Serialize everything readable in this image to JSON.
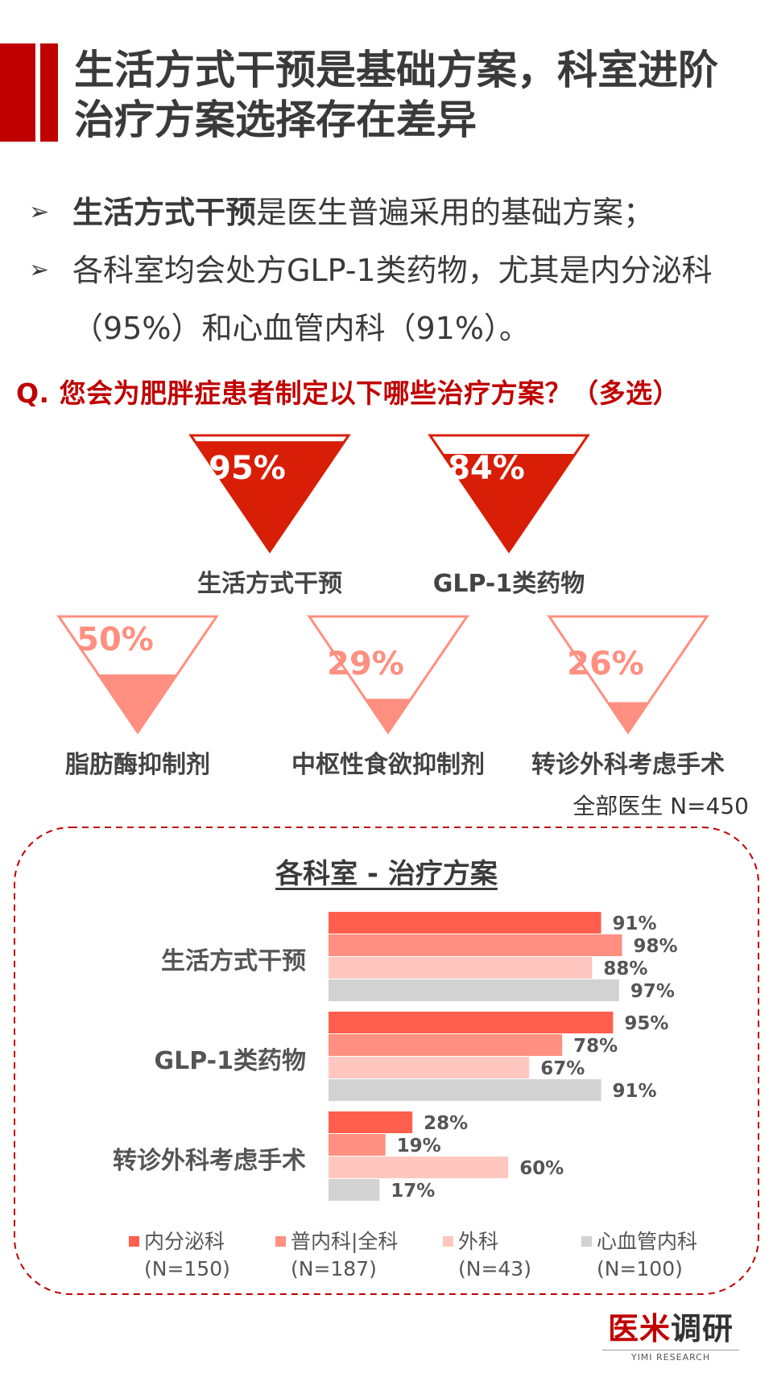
{
  "title": "生活方式干预是基础方案，科室进阶治疗方案选择存在差异",
  "bullets": [
    {
      "bold": "生活方式干预",
      "text": "是医生普遍采用的基础方案；"
    },
    {
      "bold": "",
      "text": "各科室均会处方GLP-1类药物，尤其是内分泌科（95%）和心血管内科（91%）。"
    }
  ],
  "question": "Q. 您会为肥胖症患者制定以下哪些治疗方案？（多选）",
  "sample_note": "全部医生 N=450",
  "dept_title": "各科室 - 治疗方案",
  "legend": [
    {
      "name": "内分泌科",
      "n": "(N=150)",
      "color": "#ff5f4c"
    },
    {
      "name": "普内科|全科",
      "n": "(N=187)",
      "color": "#ff8f80"
    },
    {
      "name": "外科",
      "n": "(N=43)",
      "color": "#ffc7c0"
    },
    {
      "name": "心血管内科",
      "n": "(N=100)",
      "color": "#d2d2d2"
    }
  ],
  "logo": {
    "main_red": "医米",
    "main_dark": "调研",
    "sub": "YIMI RESEARCH"
  },
  "chart_data": [
    {
      "type": "bar",
      "subtype": "funnel-triangle-fill",
      "categories": [
        "生活方式干预",
        "GLP-1类药物",
        "脂肪酶抑制剂",
        "中枢性食欲抑制剂",
        "转诊外科考虑手术"
      ],
      "values": [
        95,
        84,
        50,
        29,
        26
      ],
      "value_labels": [
        "95%",
        "84%",
        "50%",
        "29%",
        "26%"
      ],
      "colors": [
        "#d81e06",
        "#d81e06",
        "#ff8f80",
        "#ff8f80",
        "#ff8f80"
      ],
      "ylim": [
        0,
        100
      ]
    },
    {
      "type": "bar",
      "orientation": "horizontal",
      "categories": [
        "生活方式干预",
        "GLP-1类药物",
        "转诊外科考虑手术"
      ],
      "series": [
        {
          "name": "内分泌科",
          "values": [
            91,
            95,
            28
          ],
          "labels": [
            "91%",
            "95%",
            "28%"
          ],
          "color": "#ff5f4c"
        },
        {
          "name": "普内科|全科",
          "values": [
            98,
            78,
            19
          ],
          "labels": [
            "98%",
            "78%",
            "19%"
          ],
          "color": "#ff8f80"
        },
        {
          "name": "外科",
          "values": [
            88,
            67,
            60
          ],
          "labels": [
            "88%",
            "67%",
            "60%"
          ],
          "color": "#ffc7c0"
        },
        {
          "name": "心血管内科",
          "values": [
            97,
            91,
            17
          ],
          "labels": [
            "97%",
            "91%",
            "17%"
          ],
          "color": "#d2d2d2"
        }
      ],
      "xlim": [
        0,
        100
      ]
    }
  ]
}
